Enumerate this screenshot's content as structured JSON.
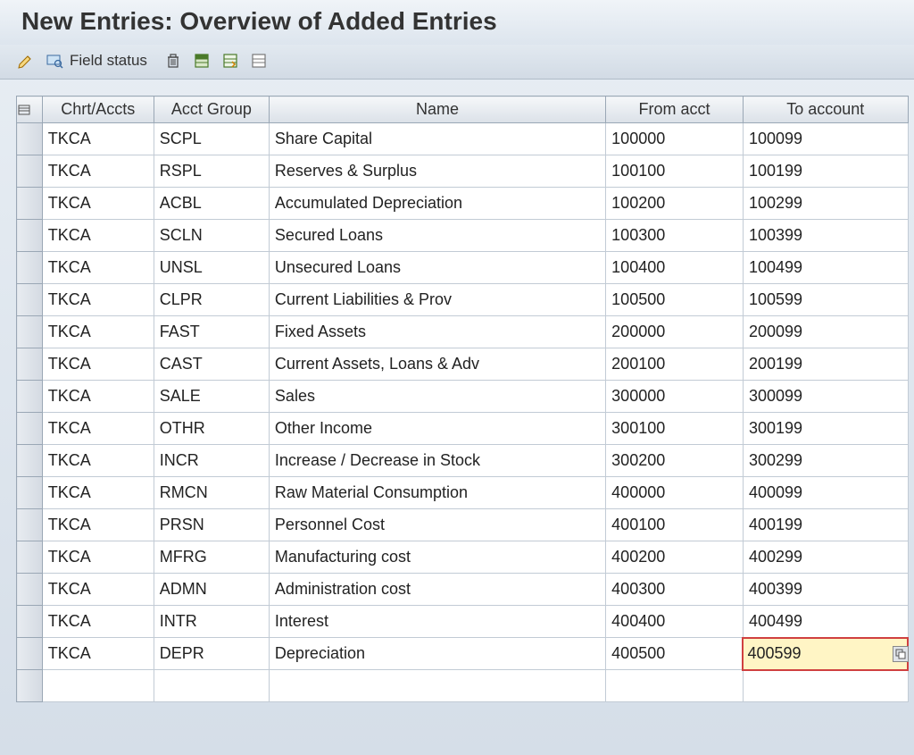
{
  "title": "New Entries: Overview of Added Entries",
  "toolbar": {
    "field_status_label": "Field status"
  },
  "columns": {
    "chrt": "Chrt/Accts",
    "group": "Acct Group",
    "name": "Name",
    "from": "From acct",
    "to": "To account"
  },
  "rows": [
    {
      "chrt": "TKCA",
      "group": "SCPL",
      "name": "Share Capital",
      "from": "100000",
      "to": "100099"
    },
    {
      "chrt": "TKCA",
      "group": "RSPL",
      "name": "Reserves & Surplus",
      "from": "100100",
      "to": "100199"
    },
    {
      "chrt": "TKCA",
      "group": "ACBL",
      "name": "Accumulated Depreciation",
      "from": "100200",
      "to": "100299"
    },
    {
      "chrt": "TKCA",
      "group": "SCLN",
      "name": "Secured Loans",
      "from": "100300",
      "to": "100399"
    },
    {
      "chrt": "TKCA",
      "group": "UNSL",
      "name": "Unsecured Loans",
      "from": "100400",
      "to": "100499"
    },
    {
      "chrt": "TKCA",
      "group": "CLPR",
      "name": "Current Liabilities & Prov",
      "from": "100500",
      "to": "100599"
    },
    {
      "chrt": "TKCA",
      "group": "FAST",
      "name": "Fixed Assets",
      "from": "200000",
      "to": "200099"
    },
    {
      "chrt": "TKCA",
      "group": "CAST",
      "name": "Current Assets, Loans & Adv",
      "from": "200100",
      "to": "200199"
    },
    {
      "chrt": "TKCA",
      "group": "SALE",
      "name": "Sales",
      "from": "300000",
      "to": "300099"
    },
    {
      "chrt": "TKCA",
      "group": "OTHR",
      "name": "Other Income",
      "from": "300100",
      "to": "300199"
    },
    {
      "chrt": "TKCA",
      "group": "INCR",
      "name": "Increase / Decrease in Stock",
      "from": "300200",
      "to": "300299"
    },
    {
      "chrt": "TKCA",
      "group": "RMCN",
      "name": "Raw Material Consumption",
      "from": "400000",
      "to": "400099"
    },
    {
      "chrt": "TKCA",
      "group": "PRSN",
      "name": "Personnel Cost",
      "from": "400100",
      "to": "400199"
    },
    {
      "chrt": "TKCA",
      "group": "MFRG",
      "name": "Manufacturing cost",
      "from": "400200",
      "to": "400299"
    },
    {
      "chrt": "TKCA",
      "group": "ADMN",
      "name": "Administration cost",
      "from": "400300",
      "to": "400399"
    },
    {
      "chrt": "TKCA",
      "group": "INTR",
      "name": "Interest",
      "from": "400400",
      "to": "400499"
    },
    {
      "chrt": "TKCA",
      "group": "DEPR",
      "name": "Depreciation",
      "from": "400500",
      "to": "400599"
    }
  ],
  "empty_rows": 1,
  "active_cell": {
    "row": 16,
    "col": "to"
  },
  "colors": {
    "header_bg_top": "#f5f7f9",
    "header_bg_bottom": "#dbe1e8",
    "border": "#9aa7b5",
    "cell_border": "#c2cbd5",
    "active_bg": "#fff5c5",
    "active_border": "#d04040"
  }
}
